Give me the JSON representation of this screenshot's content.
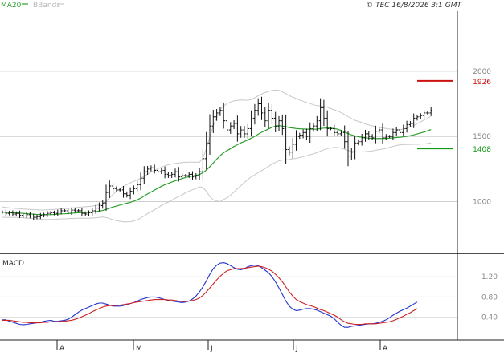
{
  "header": {
    "legend_ma": "MA20",
    "legend_bb": "BBands",
    "copyright": "© TEC 16/8/2026 3:1 GMT"
  },
  "colors": {
    "ma": "#2aa02a",
    "bbands": "#c8c8c8",
    "candles": "#111111",
    "grid": "#cfcfcf",
    "resistance": "#cc1111",
    "support": "#119911",
    "macd": "#2233cc",
    "signal": "#cc2222",
    "text": "#888888"
  },
  "chart_data": [
    {
      "type": "ohlc",
      "title": "",
      "ylim": [
        610,
        2460
      ],
      "y_ticks": [
        1000,
        1500,
        2000
      ],
      "y_tick_labels": [
        "1000",
        "1500",
        "2000"
      ],
      "x_month_labels": [
        "A",
        "M",
        "J",
        "J",
        "A"
      ],
      "grid": true,
      "levels": [
        {
          "value": 1926,
          "label": "1926",
          "role": "resistance"
        },
        {
          "value": 1408,
          "label": "1408",
          "role": "support"
        }
      ],
      "close": [
        920,
        910,
        915,
        905,
        910,
        895,
        890,
        900,
        890,
        880,
        885,
        895,
        900,
        910,
        915,
        910,
        920,
        930,
        930,
        920,
        935,
        930,
        930,
        910,
        905,
        915,
        930,
        950,
        970,
        990,
        1070,
        1120,
        1100,
        1090,
        1090,
        1060,
        1050,
        1080,
        1100,
        1130,
        1180,
        1230,
        1250,
        1260,
        1240,
        1230,
        1240,
        1210,
        1200,
        1210,
        1230,
        1190,
        1200,
        1200,
        1210,
        1190,
        1200,
        1230,
        1330,
        1450,
        1580,
        1650,
        1680,
        1700,
        1620,
        1550,
        1580,
        1600,
        1520,
        1550,
        1520,
        1560,
        1640,
        1700,
        1750,
        1680,
        1620,
        1700,
        1640,
        1580,
        1620,
        1560,
        1400,
        1380,
        1440,
        1500,
        1510,
        1530,
        1500,
        1560,
        1580,
        1620,
        1720,
        1640,
        1560,
        1560,
        1530,
        1520,
        1530,
        1460,
        1350,
        1380,
        1450,
        1460,
        1490,
        1520,
        1500,
        1490,
        1540,
        1550,
        1490,
        1500,
        1500,
        1530,
        1550,
        1530,
        1560,
        1590,
        1600,
        1640,
        1650,
        1660,
        1680,
        1680,
        1700
      ],
      "ma20": [
        920,
        918,
        916,
        915,
        914,
        912,
        910,
        908,
        906,
        904,
        902,
        901,
        900,
        900,
        901,
        902,
        904,
        906,
        907,
        909,
        911,
        913,
        915,
        916,
        917,
        918,
        920,
        923,
        927,
        932,
        940,
        950,
        959,
        966,
        974,
        981,
        988,
        995,
        1004,
        1014,
        1027,
        1043,
        1059,
        1074,
        1089,
        1103,
        1118,
        1130,
        1140,
        1150,
        1160,
        1168,
        1177,
        1185,
        1192,
        1197,
        1202,
        1208,
        1222,
        1242,
        1268,
        1297,
        1326,
        1353,
        1375,
        1391,
        1407,
        1423,
        1437,
        1451,
        1462,
        1474,
        1487,
        1501,
        1517,
        1532,
        1545,
        1558,
        1570,
        1578,
        1583,
        1580,
        1575,
        1568,
        1565,
        1561,
        1559,
        1558,
        1556,
        1556,
        1555,
        1556,
        1561,
        1564,
        1565,
        1563,
        1560,
        1555,
        1546,
        1535,
        1522,
        1512,
        1504,
        1498,
        1494,
        1490,
        1487,
        1485,
        1484,
        1485,
        1484,
        1485,
        1487,
        1489,
        1492,
        1494,
        1497,
        1501,
        1506,
        1512,
        1519,
        1527,
        1534,
        1543,
        1553
      ],
      "bb_upper": [
        960,
        956,
        953,
        950,
        948,
        946,
        944,
        942,
        940,
        938,
        937,
        936,
        936,
        937,
        938,
        940,
        942,
        944,
        946,
        948,
        951,
        954,
        957,
        959,
        961,
        963,
        966,
        970,
        975,
        981,
        1002,
        1030,
        1056,
        1078,
        1098,
        1117,
        1131,
        1144,
        1156,
        1167,
        1180,
        1195,
        1210,
        1226,
        1240,
        1253,
        1265,
        1275,
        1283,
        1289,
        1293,
        1297,
        1300,
        1302,
        1303,
        1303,
        1302,
        1302,
        1336,
        1405,
        1496,
        1580,
        1647,
        1706,
        1733,
        1752,
        1764,
        1772,
        1776,
        1779,
        1778,
        1778,
        1783,
        1796,
        1811,
        1826,
        1836,
        1845,
        1852,
        1855,
        1853,
        1841,
        1828,
        1813,
        1801,
        1790,
        1779,
        1770,
        1760,
        1752,
        1743,
        1736,
        1734,
        1730,
        1723,
        1714,
        1704,
        1694,
        1682,
        1668,
        1652,
        1637,
        1624,
        1615,
        1606,
        1596,
        1588,
        1581,
        1574,
        1570,
        1565,
        1561,
        1557,
        1555,
        1553,
        1553,
        1556,
        1564,
        1573,
        1584,
        1598,
        1612,
        1626,
        1640,
        1655
      ],
      "bb_lower": [
        880,
        880,
        879,
        880,
        880,
        878,
        876,
        874,
        872,
        870,
        867,
        866,
        864,
        863,
        864,
        864,
        866,
        868,
        868,
        870,
        871,
        872,
        873,
        873,
        873,
        873,
        874,
        876,
        879,
        883,
        878,
        870,
        862,
        854,
        850,
        845,
        845,
        846,
        852,
        861,
        874,
        891,
        908,
        922,
        938,
        953,
        971,
        985,
        997,
        1011,
        1027,
        1039,
        1054,
        1068,
        1081,
        1091,
        1102,
        1114,
        1108,
        1079,
        1040,
        1014,
        1005,
        1000,
        1017,
        1030,
        1050,
        1074,
        1098,
        1123,
        1146,
        1170,
        1191,
        1206,
        1223,
        1238,
        1254,
        1271,
        1288,
        1301,
        1313,
        1319,
        1322,
        1323,
        1329,
        1332,
        1339,
        1346,
        1352,
        1360,
        1367,
        1376,
        1388,
        1398,
        1407,
        1412,
        1416,
        1416,
        1410,
        1402,
        1392,
        1387,
        1384,
        1381,
        1382,
        1384,
        1386,
        1389,
        1394,
        1400,
        1403,
        1409,
        1417,
        1423,
        1431,
        1435,
        1438,
        1438,
        1439,
        1440,
        1440,
        1442,
        1442,
        1446,
        1451
      ]
    },
    {
      "type": "line",
      "title": "MACD",
      "ylim": [
        -0.05,
        1.6
      ],
      "y_ticks": [
        0.4,
        0.8,
        1.2
      ],
      "y_tick_labels": [
        "0.40",
        "0.80",
        "1.20"
      ],
      "series": [
        {
          "name": "",
          "values": [
            0.35,
            0.35,
            0.32,
            0.3,
            0.28,
            0.26,
            0.25,
            0.26,
            0.27,
            0.28,
            0.29,
            0.3,
            0.32,
            0.33,
            0.34,
            0.32,
            0.32,
            0.33,
            0.34,
            0.36,
            0.4,
            0.45,
            0.5,
            0.54,
            0.57,
            0.6,
            0.63,
            0.66,
            0.68,
            0.68,
            0.66,
            0.64,
            0.62,
            0.62,
            0.62,
            0.63,
            0.65,
            0.67,
            0.69,
            0.72,
            0.75,
            0.77,
            0.79,
            0.8,
            0.8,
            0.79,
            0.77,
            0.75,
            0.73,
            0.72,
            0.71,
            0.7,
            0.69,
            0.7,
            0.72,
            0.76,
            0.82,
            0.9,
            1.0,
            1.12,
            1.25,
            1.36,
            1.43,
            1.47,
            1.48,
            1.46,
            1.42,
            1.38,
            1.35,
            1.34,
            1.36,
            1.4,
            1.42,
            1.43,
            1.42,
            1.38,
            1.33,
            1.28,
            1.2,
            1.1,
            0.98,
            0.85,
            0.72,
            0.62,
            0.56,
            0.53,
            0.54,
            0.56,
            0.57,
            0.57,
            0.56,
            0.54,
            0.51,
            0.48,
            0.45,
            0.42,
            0.37,
            0.3,
            0.24,
            0.2,
            0.2,
            0.22,
            0.23,
            0.24,
            0.25,
            0.26,
            0.27,
            0.27,
            0.28,
            0.3,
            0.32,
            0.35,
            0.39,
            0.44,
            0.48,
            0.52,
            0.55,
            0.58,
            0.62,
            0.66,
            0.7
          ]
        },
        {
          "name": "",
          "values": [
            0.34,
            0.34,
            0.34,
            0.33,
            0.32,
            0.31,
            0.3,
            0.3,
            0.29,
            0.29,
            0.29,
            0.29,
            0.3,
            0.3,
            0.31,
            0.31,
            0.31,
            0.32,
            0.32,
            0.33,
            0.34,
            0.36,
            0.38,
            0.41,
            0.44,
            0.47,
            0.51,
            0.54,
            0.57,
            0.6,
            0.62,
            0.63,
            0.63,
            0.63,
            0.64,
            0.65,
            0.66,
            0.67,
            0.69,
            0.7,
            0.71,
            0.72,
            0.73,
            0.74,
            0.75,
            0.75,
            0.75,
            0.75,
            0.74,
            0.74,
            0.73,
            0.72,
            0.71,
            0.71,
            0.72,
            0.73,
            0.75,
            0.78,
            0.83,
            0.9,
            0.98,
            1.06,
            1.14,
            1.21,
            1.27,
            1.32,
            1.34,
            1.36,
            1.36,
            1.36,
            1.37,
            1.38,
            1.39,
            1.4,
            1.41,
            1.4,
            1.38,
            1.35,
            1.31,
            1.25,
            1.18,
            1.1,
            1.0,
            0.9,
            0.82,
            0.75,
            0.71,
            0.68,
            0.65,
            0.63,
            0.61,
            0.58,
            0.55,
            0.53,
            0.5,
            0.47,
            0.44,
            0.4,
            0.35,
            0.31,
            0.28,
            0.27,
            0.26,
            0.26,
            0.26,
            0.27,
            0.27,
            0.27,
            0.27,
            0.28,
            0.29,
            0.3,
            0.31,
            0.33,
            0.36,
            0.39,
            0.42,
            0.46,
            0.49,
            0.53,
            0.57
          ]
        }
      ]
    }
  ]
}
